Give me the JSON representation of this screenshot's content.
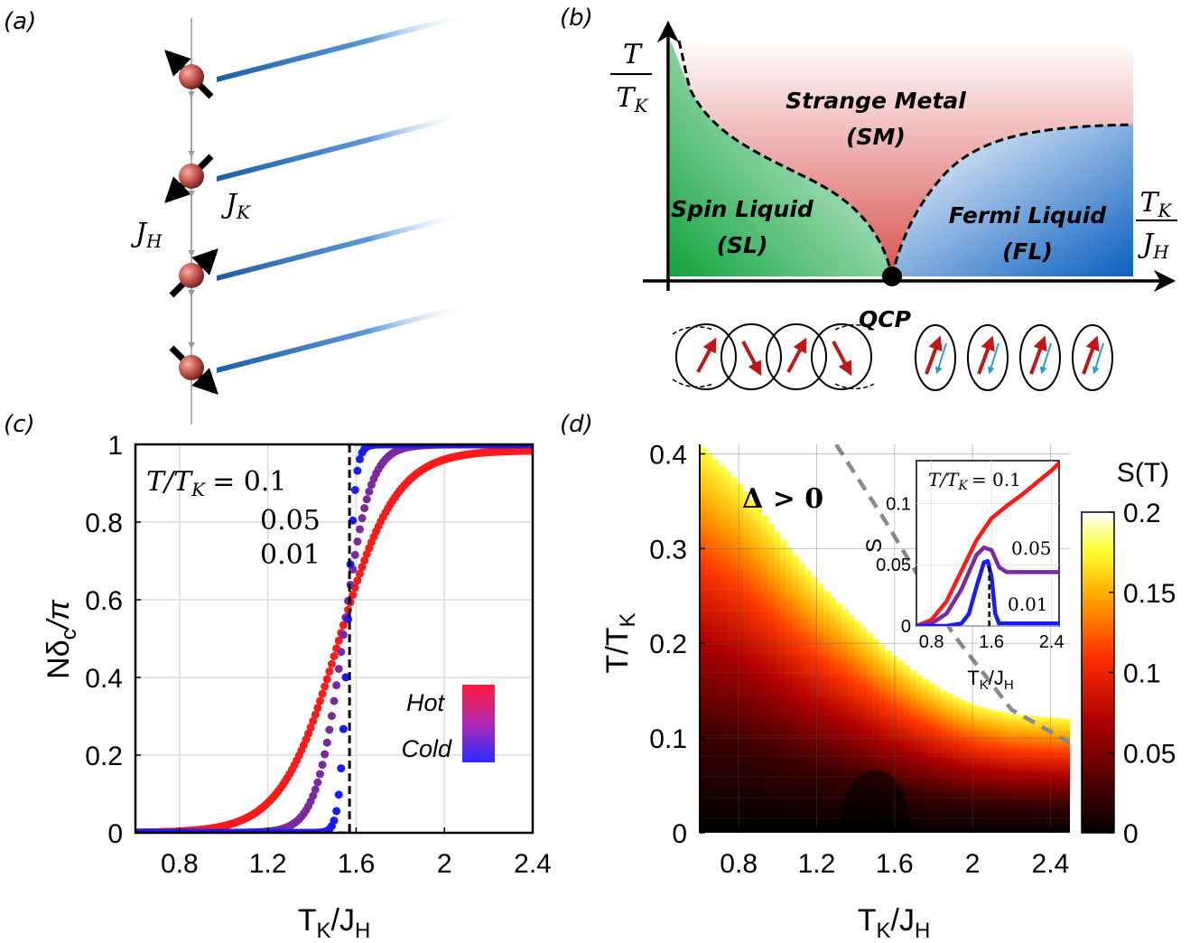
{
  "panels": {
    "a": {
      "label": "(a)",
      "jh": "J",
      "jh_sub": "H",
      "jk": "J",
      "jk_sub": "K",
      "spin_dirs": [
        "up-left",
        "down-left",
        "up-right",
        "down-right"
      ]
    },
    "b": {
      "label": "(b)",
      "y_num": "T",
      "y_den": "T",
      "y_den_sub": "K",
      "x_num": "T",
      "x_num_sub": "K",
      "x_den": "J",
      "x_den_sub": "H",
      "sm1": "Strange Metal",
      "sm2": "(SM)",
      "sl1": "Spin Liquid",
      "sl2": "(SL)",
      "fl1": "Fermi Liquid",
      "fl2": "(FL)",
      "qcp": "QCP",
      "colors": {
        "sl": "#1fa84a",
        "sm": "#d9534f",
        "fl": "#1f6fc0"
      }
    },
    "c": {
      "label": "(c)",
      "ann_lhs": "T/T",
      "ann_lhs_sub": "K",
      "ann_eq": "= 0.1",
      "ann_2": "0.05",
      "ann_3": "0.01",
      "legend_hot": "Hot",
      "legend_cold": "Cold",
      "ylabel": "Nδ",
      "ylabel_sub": "c",
      "ylabel_tail": "/π",
      "xlabel": "T",
      "xlabel_sub": "K",
      "xlabel_mid": "/J",
      "xlabel_sub2": "H"
    },
    "d": {
      "label": "(d)",
      "gap": "Δ > 0",
      "ylabel": "T/T",
      "ylabel_sub": "K",
      "xlabel": "T",
      "xlabel_sub": "K",
      "xlabel_mid": "/J",
      "xlabel_sub2": "H",
      "cbar_title": "S(T)",
      "inset": {
        "ann": "T/T",
        "ann_sub": "K",
        "ann_eq": "= 0.1",
        "l2": "0.05",
        "l3": "0.01",
        "ylabel": "S",
        "xlabel": "T",
        "xlabel_sub": "K",
        "xlabel_mid": "/J",
        "xlabel_sub2": "H"
      }
    }
  },
  "chart_data": [
    {
      "panel": "c",
      "type": "scatter",
      "xlabel": "TK/JH",
      "ylabel": "Nδc/π",
      "xlim": [
        0.6,
        2.4
      ],
      "ylim": [
        0,
        1
      ],
      "xticks": [
        "0.8",
        "1.2",
        "1.6",
        "2",
        "2.4"
      ],
      "yticks": [
        "0",
        "0.2",
        "0.4",
        "0.6",
        "0.8",
        "1"
      ],
      "grid": true,
      "crossing": {
        "x": 1.52,
        "y": 0.6
      },
      "series": [
        {
          "name": "0.1",
          "color": "#ff1a1a",
          "center": 1.52,
          "width": 0.26,
          "ymax": 0.985
        },
        {
          "name": "0.05",
          "color": "#7a2a9e",
          "center": 1.54,
          "width": 0.12,
          "ymax": 1.0
        },
        {
          "name": "0.01",
          "color": "#1a1aff",
          "center": 1.56,
          "width": 0.035,
          "ymax": 1.0
        }
      ],
      "step": {
        "x": [
          0.6,
          1.57,
          1.57,
          2.4
        ],
        "y": [
          0,
          0,
          1,
          1
        ]
      }
    },
    {
      "panel": "d",
      "type": "heatmap",
      "xlabel": "TK/JH",
      "ylabel": "T/TK",
      "xlim": [
        0.6,
        2.5
      ],
      "ylim": [
        0,
        0.41
      ],
      "xticks": [
        "0.8",
        "1.2",
        "1.6",
        "2",
        "2.4"
      ],
      "yticks": [
        "0",
        "0.1",
        "0.2",
        "0.3",
        "0.4"
      ],
      "colorbar": {
        "min": 0,
        "max": 0.2,
        "ticks": [
          "0",
          "0.05",
          "0.1",
          "0.15",
          "0.2"
        ]
      },
      "white_region_boundary": {
        "x": [
          0.6,
          0.7,
          0.8,
          0.95,
          1.1,
          1.25,
          1.4,
          1.55,
          1.7,
          1.85,
          2.0,
          2.2,
          2.5
        ],
        "t": [
          0.41,
          0.39,
          0.37,
          0.33,
          0.29,
          0.255,
          0.225,
          0.195,
          0.17,
          0.15,
          0.135,
          0.125,
          0.12
        ]
      },
      "dashed_boundary": {
        "x": [
          1.3,
          1.55,
          1.9,
          2.2,
          2.5
        ],
        "t": [
          0.41,
          0.33,
          0.21,
          0.13,
          0.095
        ]
      }
    },
    {
      "panel": "d-inset",
      "type": "line",
      "xlabel": "TK/JH",
      "ylabel": "S",
      "xlim": [
        0.6,
        2.5
      ],
      "ylim": [
        0,
        0.135
      ],
      "xticks": [
        "0.8",
        "1.6",
        "2.4"
      ],
      "yticks": [
        "0",
        "0.05",
        "0.1"
      ],
      "series": [
        {
          "name": "0.1",
          "color": "#ff1a1a",
          "x": [
            0.6,
            0.8,
            1.0,
            1.2,
            1.4,
            1.6,
            1.8,
            2.0,
            2.2,
            2.4,
            2.5
          ],
          "y": [
            0.0,
            0.005,
            0.02,
            0.045,
            0.07,
            0.088,
            0.098,
            0.107,
            0.117,
            0.127,
            0.133
          ]
        },
        {
          "name": "0.05",
          "color": "#7a2a9e",
          "x": [
            0.6,
            0.8,
            1.0,
            1.2,
            1.4,
            1.5,
            1.6,
            1.7,
            1.8,
            2.0,
            2.5
          ],
          "y": [
            0.0,
            0.002,
            0.01,
            0.03,
            0.058,
            0.064,
            0.062,
            0.048,
            0.044,
            0.044,
            0.044
          ]
        },
        {
          "name": "0.01",
          "color": "#1a1aff",
          "x": [
            0.6,
            1.0,
            1.2,
            1.3,
            1.4,
            1.5,
            1.55,
            1.6,
            1.65,
            1.7,
            2.0,
            2.5
          ],
          "y": [
            0.0,
            0.0,
            0.002,
            0.01,
            0.032,
            0.052,
            0.053,
            0.04,
            0.01,
            0.002,
            0.002,
            0.002
          ]
        }
      ],
      "marker_x": 1.57
    }
  ]
}
